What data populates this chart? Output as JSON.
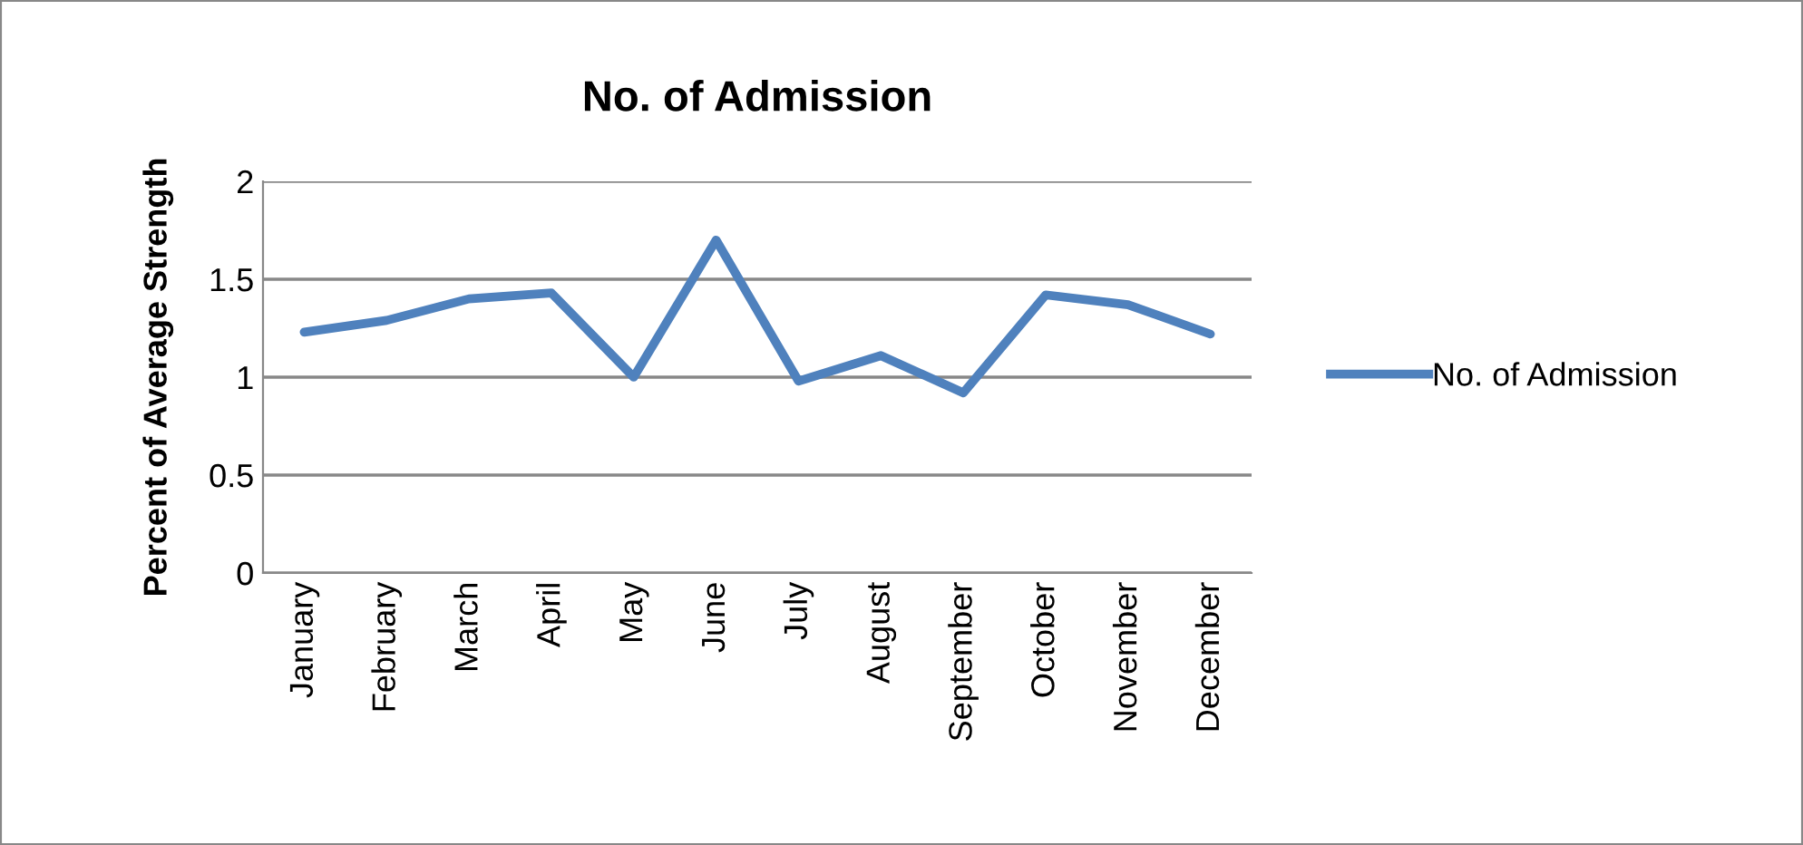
{
  "chart_data": {
    "type": "line",
    "title": "No. of Admission",
    "ylabel": "Percent of Average Strength",
    "categories": [
      "January",
      "February",
      "March",
      "April",
      "May",
      "June",
      "July",
      "August",
      "September",
      "October",
      "November",
      "December"
    ],
    "series": [
      {
        "name": "No. of Admission",
        "color": "#4f81bd",
        "values": [
          1.23,
          1.29,
          1.4,
          1.43,
          1.0,
          1.7,
          0.98,
          1.11,
          0.92,
          1.42,
          1.37,
          1.22
        ]
      }
    ],
    "ylim": [
      0,
      2
    ],
    "yticks": [
      0,
      0.5,
      1,
      1.5,
      2
    ],
    "grid": "y",
    "legend": "right",
    "marker": "none",
    "line_style": "solid"
  }
}
